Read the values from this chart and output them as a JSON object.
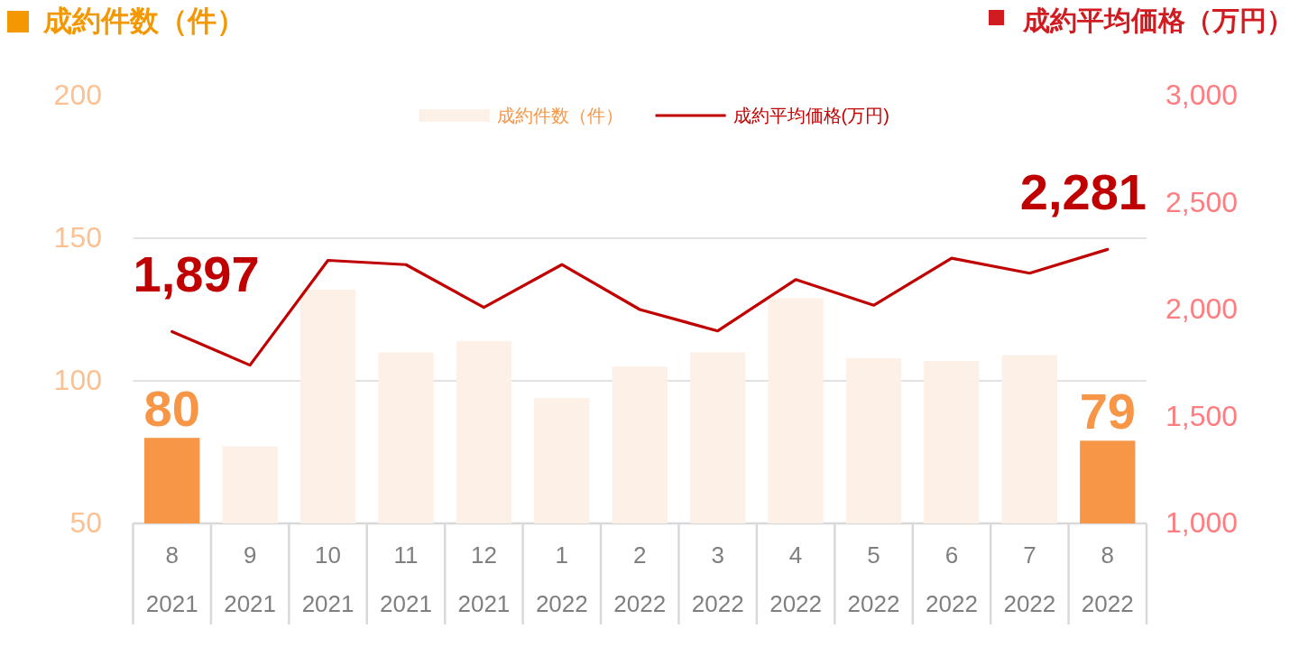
{
  "chart_data": {
    "type": "bar",
    "ylabel": "成約件数（件）",
    "y2label": "成約平均価格（万円）",
    "categories": [
      "8\n2021",
      "9\n2021",
      "10\n2021",
      "11\n2021",
      "12\n2021",
      "1\n2022",
      "2\n2022",
      "3\n2022",
      "4\n2022",
      "5\n2022",
      "6\n2022",
      "7\n2022",
      "8\n2022"
    ],
    "series": [
      {
        "name": "成約件数（件）",
        "color": "#fdf0e6",
        "colors": [
          "#f79646",
          "#fdf0e6",
          "#fdf0e6",
          "#fdf0e6",
          "#fdf0e6",
          "#fdf0e6",
          "#fdf0e6",
          "#fdf0e6",
          "#fdf0e6",
          "#fdf0e6",
          "#fdf0e6",
          "#fdf0e6",
          "#f79646"
        ],
        "values": [
          80,
          77,
          132,
          110,
          114,
          94,
          105,
          110,
          129,
          108,
          107,
          109,
          79
        ],
        "value_labels": [
          "80",
          null,
          null,
          null,
          null,
          null,
          null,
          null,
          null,
          null,
          null,
          null,
          "79"
        ]
      },
      {
        "name": "成約平均価格(万円)",
        "type": "line",
        "axis": "y2",
        "color": "#c00000",
        "values": [
          1897,
          1740,
          2230,
          2210,
          2010,
          2210,
          2000,
          1900,
          2140,
          2020,
          2240,
          2170,
          2281
        ],
        "value_labels": [
          "1,897",
          null,
          null,
          null,
          null,
          null,
          null,
          null,
          null,
          null,
          null,
          null,
          "2,281"
        ]
      }
    ],
    "ylim": [
      50,
      200
    ],
    "yticks": [
      50,
      100,
      150,
      200
    ],
    "y2lim": [
      1000,
      3000
    ],
    "y2ticks": [
      {
        "value": 1000,
        "label": "1,000"
      },
      {
        "value": 1500,
        "label": "1,500"
      },
      {
        "value": 2000,
        "label": "2,000"
      },
      {
        "value": 2500,
        "label": "2,500"
      },
      {
        "value": 3000,
        "label": "3,000"
      }
    ],
    "grid": "y",
    "legend": "top"
  }
}
